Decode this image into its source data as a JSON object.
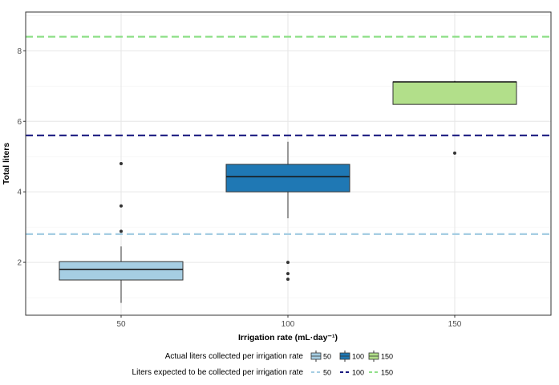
{
  "chart_data": {
    "type": "box",
    "xlabel": "Irrigation rate (mL·day⁻¹)",
    "ylabel": "Total liters",
    "categories": [
      "50",
      "100",
      "150"
    ],
    "ylim": [
      0.5,
      9.1
    ],
    "yticks": [
      2,
      4,
      6,
      8
    ],
    "grid": true,
    "boxes": [
      {
        "category": "50",
        "min": 0.85,
        "q1": 1.5,
        "median": 1.8,
        "q3": 2.02,
        "max": 2.45,
        "outliers": [
          2.88,
          3.6,
          4.8
        ],
        "color": "#a6cee3"
      },
      {
        "category": "100",
        "min": 3.25,
        "q1": 4.0,
        "median": 4.43,
        "q3": 4.78,
        "max": 5.42,
        "outliers": [
          1.52,
          1.68,
          2.0
        ],
        "color": "#1f78b4"
      },
      {
        "category": "150",
        "min": 6.48,
        "q1": 6.48,
        "median": 7.12,
        "q3": 7.12,
        "max": 7.15,
        "outliers": [
          5.1
        ],
        "color": "#b2df8a"
      }
    ],
    "reference_lines": [
      {
        "category": "50",
        "value": 2.8,
        "color": "#a6cee3"
      },
      {
        "category": "100",
        "value": 5.6,
        "color": "#1a1a80"
      },
      {
        "category": "150",
        "value": 8.4,
        "color": "#90e08a"
      }
    ],
    "legend": {
      "placement": "bottom",
      "box_title": "Actual liters collected per irrigation rate",
      "line_title": "Liters expected to be collected per irrigation rate",
      "entries": [
        "50",
        "100",
        "150"
      ]
    }
  }
}
